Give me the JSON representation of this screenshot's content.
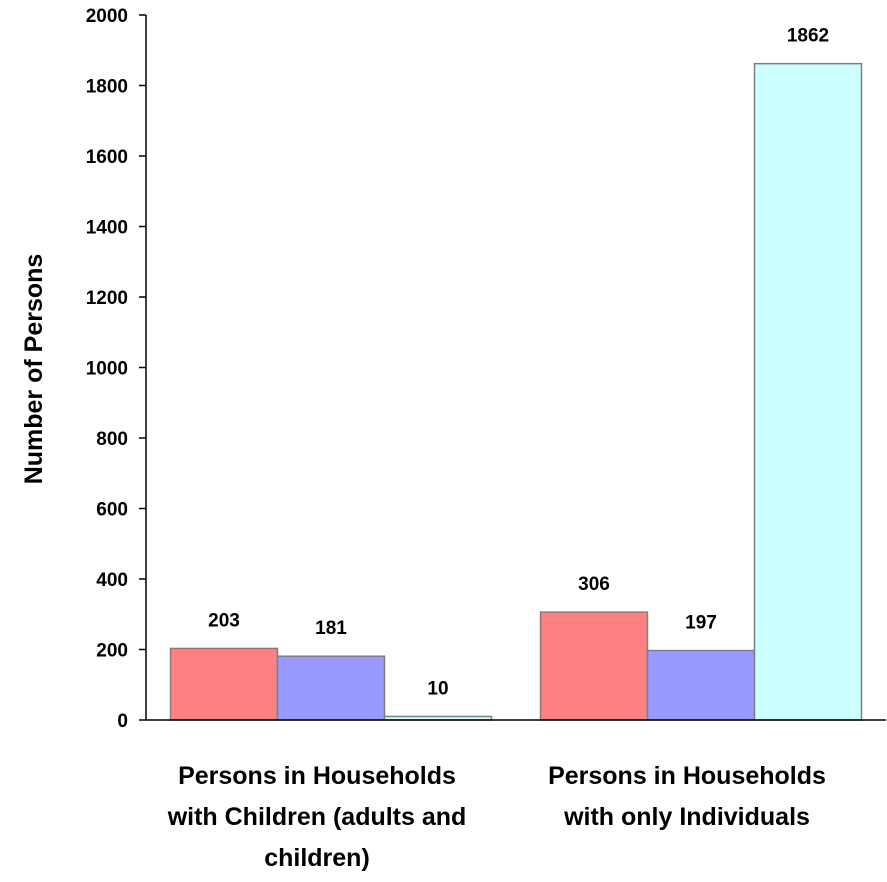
{
  "chart_data": {
    "type": "bar",
    "title": "",
    "xlabel": "",
    "ylabel": "Number of Persons",
    "ylim": [
      0,
      2000
    ],
    "yticks": [
      0,
      200,
      400,
      600,
      800,
      1000,
      1200,
      1400,
      1600,
      1800,
      2000
    ],
    "grid": false,
    "legend": "none",
    "categories": [
      [
        "Persons in Households",
        "with Children (adults and",
        "children)"
      ],
      [
        "Persons in Households",
        "with only Individuals"
      ]
    ],
    "series": [
      {
        "values": [
          203,
          306
        ],
        "color": "#FF8080"
      },
      {
        "values": [
          181,
          197
        ],
        "color": "#9999FF"
      },
      {
        "values": [
          10,
          1862
        ],
        "color": "#CCFFFF"
      }
    ]
  }
}
